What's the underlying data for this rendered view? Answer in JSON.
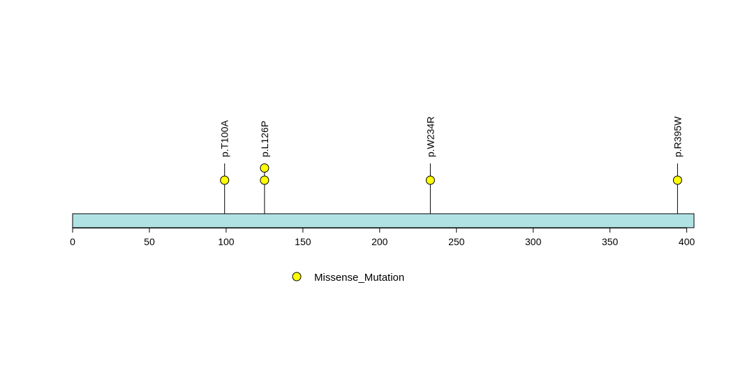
{
  "chart_data": {
    "type": "lollipop",
    "xlim": [
      0,
      402
    ],
    "ticks": [
      0,
      50,
      100,
      150,
      200,
      250,
      300,
      350,
      400
    ],
    "mutations": [
      {
        "label": "p.T100A",
        "position": 99,
        "count": 1
      },
      {
        "label": "p.L126P",
        "position": 125,
        "count": 2
      },
      {
        "label": "p.W234R",
        "position": 233,
        "count": 1
      },
      {
        "label": "p.R395W",
        "position": 394,
        "count": 1
      }
    ],
    "legend": {
      "label": "Missense_Mutation",
      "color": "#ffff00"
    },
    "colors": {
      "protein_bar": "#b0e2e4",
      "marker": "#ffff00",
      "stroke": "#000000"
    }
  }
}
